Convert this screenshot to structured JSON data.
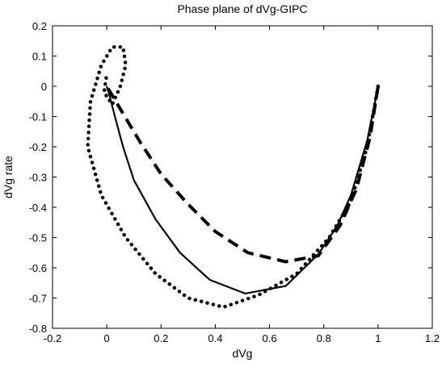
{
  "chart_data": {
    "type": "line",
    "title": "Phase plane of dVg-GIPC",
    "xlabel": "dVg",
    "ylabel": "dVg rate",
    "xlim": [
      -0.2,
      1.2
    ],
    "ylim": [
      -0.8,
      0.2
    ],
    "xticks": [
      -0.2,
      0,
      0.2,
      0.4,
      0.6,
      0.8,
      1,
      1.2
    ],
    "xtick_labels": [
      "-0.2",
      "0",
      "0.2",
      "0.4",
      "0.6",
      "0.8",
      "1",
      "1.2"
    ],
    "yticks": [
      0.2,
      0.1,
      0,
      -0.1,
      -0.2,
      -0.3,
      -0.4,
      -0.5,
      -0.6,
      -0.7,
      -0.8
    ],
    "ytick_labels": [
      "0.2",
      "0.1",
      "0",
      "-0.1",
      "-0.2",
      "-0.3",
      "-0.4",
      "-0.5",
      "-0.6",
      "-0.7",
      "-0.8"
    ],
    "grid": false,
    "line_color": "#000000",
    "series": [
      {
        "style": "solid",
        "x": [
          1.0,
          0.96,
          0.9,
          0.85,
          0.78,
          0.66,
          0.51,
          0.38,
          0.27,
          0.18,
          0.1,
          0.06,
          0.03,
          0.01,
          0.0
        ],
        "y": [
          0.0,
          -0.18,
          -0.36,
          -0.46,
          -0.555,
          -0.66,
          -0.685,
          -0.64,
          -0.55,
          -0.44,
          -0.31,
          -0.2,
          -0.1,
          -0.03,
          0.0
        ]
      },
      {
        "style": "dashed",
        "x": [
          1.0,
          0.97,
          0.92,
          0.86,
          0.78,
          0.66,
          0.52,
          0.4,
          0.3,
          0.2,
          0.12,
          0.06,
          0.02,
          0.0
        ],
        "y": [
          0.0,
          -0.17,
          -0.34,
          -0.46,
          -0.56,
          -0.58,
          -0.55,
          -0.48,
          -0.39,
          -0.29,
          -0.18,
          -0.09,
          -0.03,
          0.0
        ]
      },
      {
        "style": "dotted",
        "x": [
          1.0,
          0.96,
          0.9,
          0.82,
          0.7,
          0.56,
          0.43,
          0.3,
          0.18,
          0.07,
          -0.02,
          -0.07,
          -0.06,
          -0.02,
          0.02,
          0.06,
          0.07,
          0.05,
          0.02,
          -0.01,
          0.0
        ],
        "y": [
          0.0,
          -0.2,
          -0.38,
          -0.5,
          -0.62,
          -0.69,
          -0.73,
          -0.7,
          -0.62,
          -0.5,
          -0.36,
          -0.2,
          -0.05,
          0.07,
          0.13,
          0.13,
          0.07,
          0.0,
          -0.06,
          -0.02,
          0.04
        ]
      }
    ]
  }
}
